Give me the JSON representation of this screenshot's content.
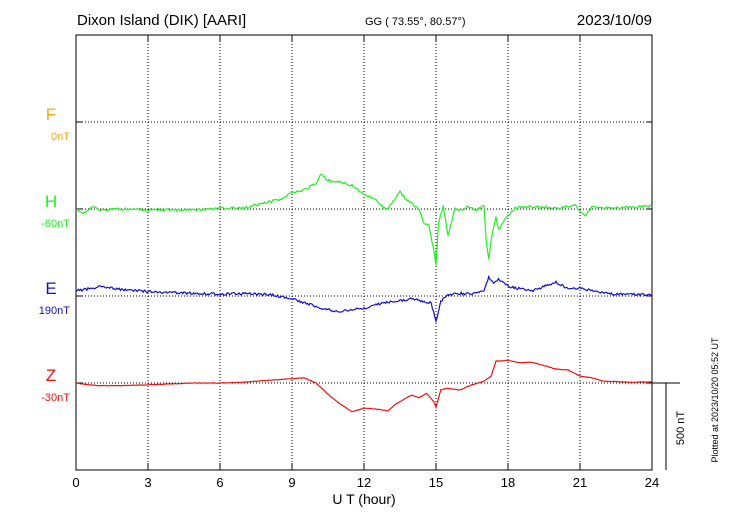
{
  "header": {
    "station": "Dixon Island (DIK)  [AARI]",
    "coords": "GG ( 73.55°,  80.57°)",
    "date": "2023/10/09"
  },
  "footer": {
    "plotted": "Plotted at 2023/10/20 05:52 UT"
  },
  "chart_data": {
    "type": "line",
    "title": "",
    "xlabel": "U T (hour)",
    "xlim": [
      0,
      24
    ],
    "xticks": [
      0,
      3,
      6,
      9,
      12,
      15,
      18,
      21,
      24
    ],
    "xtick_labels": [
      "0",
      "3",
      "6",
      "9",
      "12",
      "15",
      "18",
      "21",
      "24"
    ],
    "ylabel": "",
    "scale_bar": {
      "label": "500 nT",
      "value_nT": 500
    },
    "grid": "dotted baselines at 3-hour intervals",
    "series": [
      {
        "name": "F",
        "baseline_label": "0nT",
        "color": "#f5a623",
        "values": []
      },
      {
        "name": "H",
        "baseline_label": "-60nT",
        "color": "#22ee22",
        "points": [
          [
            0,
            0
          ],
          [
            0.3,
            -25
          ],
          [
            0.7,
            15
          ],
          [
            1,
            -5
          ],
          [
            2,
            0
          ],
          [
            3,
            -5
          ],
          [
            4,
            -5
          ],
          [
            5,
            -5
          ],
          [
            6,
            5
          ],
          [
            7,
            5
          ],
          [
            8,
            40
          ],
          [
            8.5,
            55
          ],
          [
            9,
            95
          ],
          [
            9.5,
            110
          ],
          [
            10,
            145
          ],
          [
            10.2,
            200
          ],
          [
            10.5,
            165
          ],
          [
            11,
            155
          ],
          [
            11.5,
            135
          ],
          [
            12,
            85
          ],
          [
            12.5,
            50
          ],
          [
            12.8,
            10
          ],
          [
            13,
            5
          ],
          [
            13.2,
            40
          ],
          [
            13.5,
            100
          ],
          [
            13.8,
            50
          ],
          [
            14,
            30
          ],
          [
            14.3,
            -5
          ],
          [
            14.5,
            -80
          ],
          [
            14.7,
            -90
          ],
          [
            14.9,
            -230
          ],
          [
            15,
            -320
          ],
          [
            15.1,
            -80
          ],
          [
            15.3,
            15
          ],
          [
            15.5,
            -150
          ],
          [
            15.8,
            10
          ],
          [
            16,
            -5
          ],
          [
            16.3,
            10
          ],
          [
            16.7,
            -5
          ],
          [
            17,
            20
          ],
          [
            17.1,
            -200
          ],
          [
            17.2,
            -290
          ],
          [
            17.3,
            -170
          ],
          [
            17.5,
            -50
          ],
          [
            17.6,
            -120
          ],
          [
            17.8,
            -80
          ],
          [
            18,
            -40
          ],
          [
            18.3,
            5
          ],
          [
            19,
            15
          ],
          [
            20,
            5
          ],
          [
            20.8,
            20
          ],
          [
            21.2,
            -40
          ],
          [
            21.5,
            15
          ],
          [
            22,
            5
          ],
          [
            23,
            10
          ],
          [
            24,
            15
          ]
        ]
      },
      {
        "name": "E",
        "baseline_label": "190nT",
        "color": "#1111cc",
        "points": [
          [
            0,
            30
          ],
          [
            0.5,
            40
          ],
          [
            1,
            55
          ],
          [
            2,
            35
          ],
          [
            3,
            25
          ],
          [
            4,
            20
          ],
          [
            5,
            15
          ],
          [
            6,
            10
          ],
          [
            7,
            15
          ],
          [
            8,
            10
          ],
          [
            9,
            -15
          ],
          [
            10,
            -60
          ],
          [
            10.8,
            -90
          ],
          [
            11.5,
            -80
          ],
          [
            12,
            -70
          ],
          [
            12.5,
            -50
          ],
          [
            13,
            -35
          ],
          [
            14,
            -15
          ],
          [
            14.8,
            -40
          ],
          [
            15,
            -150
          ],
          [
            15.2,
            -30
          ],
          [
            15.5,
            10
          ],
          [
            16,
            15
          ],
          [
            16.5,
            10
          ],
          [
            17,
            35
          ],
          [
            17.2,
            110
          ],
          [
            17.4,
            70
          ],
          [
            17.6,
            100
          ],
          [
            18,
            55
          ],
          [
            19,
            30
          ],
          [
            19.5,
            55
          ],
          [
            20,
            80
          ],
          [
            20.5,
            40
          ],
          [
            21,
            45
          ],
          [
            22,
            15
          ],
          [
            23,
            10
          ],
          [
            24,
            5
          ]
        ]
      },
      {
        "name": "Z",
        "baseline_label": "-30nT",
        "color": "#ee1111",
        "points": [
          [
            0,
            0
          ],
          [
            0.5,
            -10
          ],
          [
            1,
            -15
          ],
          [
            2,
            -15
          ],
          [
            3,
            -10
          ],
          [
            4,
            -5
          ],
          [
            5,
            0
          ],
          [
            6,
            0
          ],
          [
            7,
            5
          ],
          [
            8,
            15
          ],
          [
            9,
            25
          ],
          [
            9.5,
            30
          ],
          [
            10,
            0
          ],
          [
            10.5,
            -65
          ],
          [
            11,
            -120
          ],
          [
            11.5,
            -165
          ],
          [
            12,
            -145
          ],
          [
            12.5,
            -150
          ],
          [
            13,
            -160
          ],
          [
            13.3,
            -125
          ],
          [
            13.7,
            -90
          ],
          [
            14,
            -70
          ],
          [
            14.3,
            -85
          ],
          [
            14.6,
            -60
          ],
          [
            14.9,
            -105
          ],
          [
            15,
            -140
          ],
          [
            15.2,
            -40
          ],
          [
            15.5,
            -30
          ],
          [
            16,
            -40
          ],
          [
            16.5,
            -10
          ],
          [
            17,
            10
          ],
          [
            17.3,
            40
          ],
          [
            17.5,
            125
          ],
          [
            18,
            130
          ],
          [
            18.5,
            115
          ],
          [
            19,
            120
          ],
          [
            19.5,
            100
          ],
          [
            20,
            80
          ],
          [
            20.5,
            75
          ],
          [
            21,
            40
          ],
          [
            21.5,
            30
          ],
          [
            22,
            10
          ],
          [
            23,
            5
          ],
          [
            24,
            5
          ]
        ]
      }
    ]
  }
}
